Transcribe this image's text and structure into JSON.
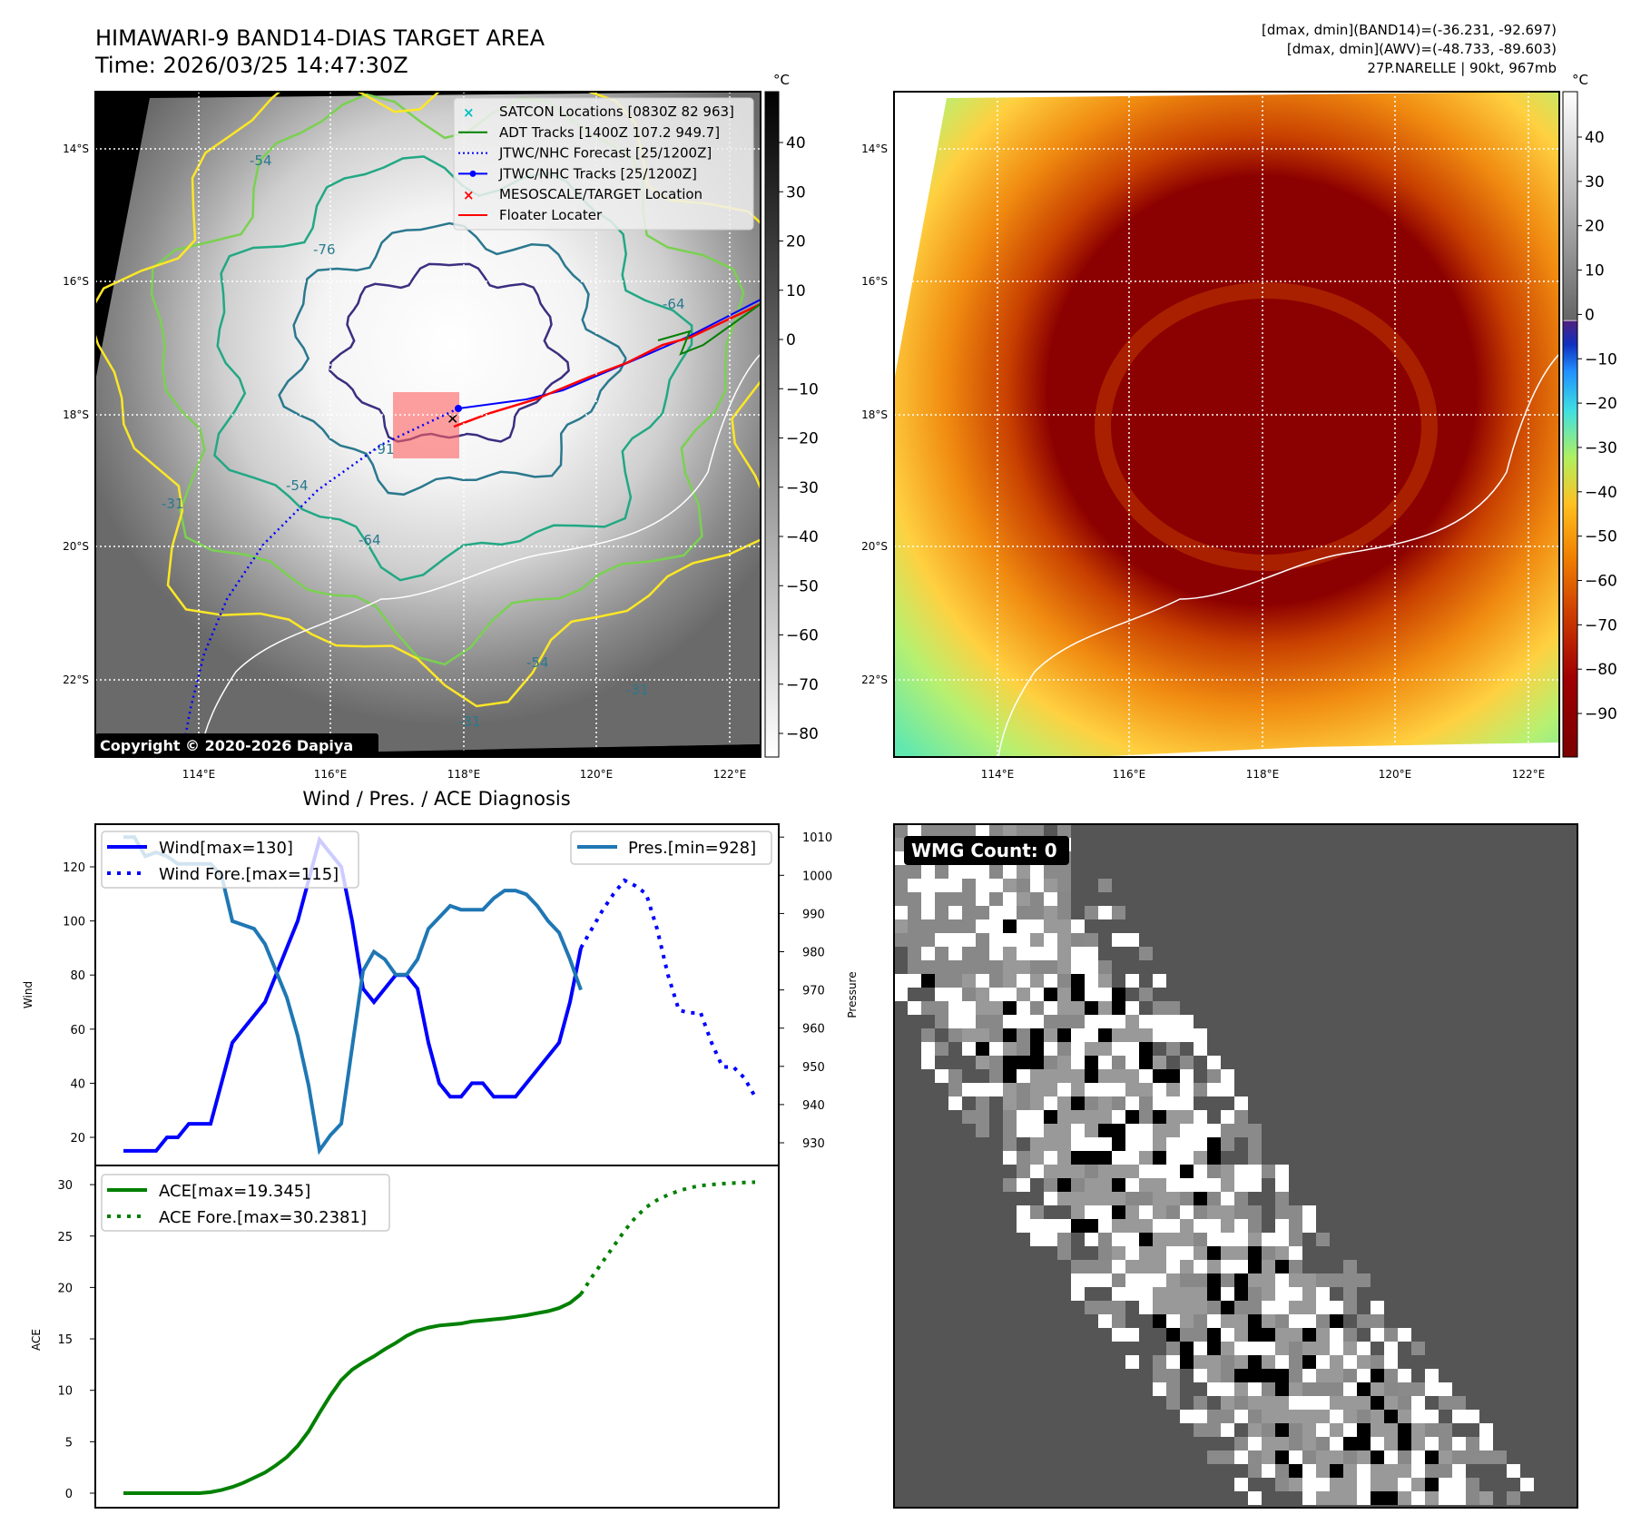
{
  "header": {
    "title": "HIMAWARI-9 BAND14-DIAS TARGET AREA",
    "time": "Time: 2026/03/25 14:47:30Z",
    "info_line1": "[dmax, dmin](BAND14)=(-36.231, -92.697)",
    "info_line2": "[dmax, dmin](AWV)=(-48.733, -89.603)",
    "info_line3": "27P.NARELLE | 90kt, 967mb"
  },
  "left_map": {
    "copyright": "Copyright © 2020-2026 Dapiya",
    "lon_labels": [
      "114°E",
      "116°E",
      "118°E",
      "120°E",
      "122°E"
    ],
    "lat_labels": [
      "14°S",
      "16°S",
      "18°S",
      "20°S",
      "22°S"
    ],
    "contour_labels": [
      "-54",
      "-76",
      "-64",
      "-91",
      "-54",
      "-64",
      "-54",
      "-31",
      "-31",
      "-31"
    ],
    "colorbar_unit": "°C",
    "colorbar_ticks": [
      "40",
      "30",
      "20",
      "10",
      "0",
      "−10",
      "−20",
      "−30",
      "−40",
      "−50",
      "−60",
      "−70",
      "−80"
    ],
    "legend": [
      {
        "label": "SATCON Locations [0830Z 82 963]",
        "color": "#00c0c0",
        "style": "x"
      },
      {
        "label": "ADT Tracks [1400Z 107.2 949.7]",
        "color": "#008000",
        "style": "line"
      },
      {
        "label": "JTWC/NHC Forecast [25/1200Z]",
        "color": "#0000ff",
        "style": "dot"
      },
      {
        "label": "JTWC/NHC Tracks [25/1200Z]",
        "color": "#0000ff",
        "style": "marker"
      },
      {
        "label": "MESOSCALE/TARGET Location",
        "color": "#ff0000",
        "style": "x"
      },
      {
        "label": "Floater Locater",
        "color": "#ff0000",
        "style": "line"
      }
    ]
  },
  "right_map": {
    "lon_labels": [
      "114°E",
      "116°E",
      "118°E",
      "120°E",
      "122°E"
    ],
    "lat_labels": [
      "14°S",
      "16°S",
      "18°S",
      "20°S",
      "22°S"
    ],
    "colorbar_unit": "°C",
    "colorbar_ticks": [
      "40",
      "30",
      "20",
      "10",
      "0",
      "−10",
      "−20",
      "−30",
      "−40",
      "−50",
      "−60",
      "−70",
      "−80",
      "−90"
    ]
  },
  "wmg": {
    "label": "WMG Count: 0"
  },
  "chart_data": [
    {
      "type": "line",
      "title": "Wind / Pres. / ACE Diagnosis",
      "ylabel": "Wind",
      "ylabel_right": "Pressure",
      "ylim": [
        10,
        135
      ],
      "ylim_right": [
        922,
        1012
      ],
      "yticks": [
        "20",
        "40",
        "60",
        "80",
        "100",
        "120"
      ],
      "yticks_right": [
        "930",
        "940",
        "950",
        "960",
        "970",
        "980",
        "990",
        "1000",
        "1010"
      ],
      "series": [
        {
          "name": "Wind[max=130]",
          "color": "#0000ff",
          "style": "solid",
          "start": 0,
          "values": [
            15,
            15,
            15,
            15,
            20,
            20,
            25,
            25,
            25,
            40,
            55,
            60,
            65,
            70,
            80,
            90,
            100,
            115,
            130,
            125,
            120,
            100,
            75,
            70,
            75,
            80,
            80,
            75,
            55,
            40,
            35,
            35,
            40,
            40,
            35,
            35,
            35,
            40,
            45,
            50,
            55,
            70,
            90
          ]
        },
        {
          "name": "Wind Fore.[max=115]",
          "color": "#0000ff",
          "style": "dotted",
          "start": 42,
          "values": [
            90,
            97,
            104,
            110,
            115,
            113,
            110,
            97,
            80,
            67,
            66,
            66,
            55,
            46,
            46,
            42,
            35
          ]
        },
        {
          "name": "Pres.[min=928]",
          "color": "#1f77b4",
          "style": "solid",
          "axis": "right",
          "start": 0,
          "values": [
            1010,
            1010,
            1005,
            1006,
            1005,
            1003,
            1003,
            1003,
            1003,
            1000,
            988,
            987,
            986,
            982,
            975,
            968,
            958,
            945,
            928,
            932,
            935,
            955,
            975,
            980,
            978,
            974,
            974,
            978,
            986,
            989,
            992,
            991,
            991,
            991,
            994,
            996,
            996,
            995,
            992,
            988,
            985,
            978,
            970
          ]
        }
      ]
    },
    {
      "type": "line",
      "ylabel": "ACE",
      "ylim": [
        -2,
        32
      ],
      "yticks": [
        "0",
        "5",
        "10",
        "15",
        "20",
        "25",
        "30"
      ],
      "series": [
        {
          "name": "ACE[max=19.345]",
          "color": "#008000",
          "style": "solid",
          "start": 0,
          "values": [
            0,
            0,
            0,
            0,
            0,
            0,
            0,
            0,
            0.1,
            0.3,
            0.6,
            1,
            1.5,
            2,
            2.7,
            3.5,
            4.6,
            6,
            7.8,
            9.5,
            11,
            12,
            12.7,
            13.3,
            14,
            14.6,
            15.3,
            15.8,
            16.1,
            16.3,
            16.4,
            16.5,
            16.7,
            16.8,
            16.9,
            17.0,
            17.15,
            17.3,
            17.5,
            17.7,
            18.0,
            18.5,
            19.35
          ]
        },
        {
          "name": "ACE Fore.[max=30.2381]",
          "color": "#008000",
          "style": "dotted",
          "start": 42,
          "values": [
            19.35,
            21,
            22.5,
            24,
            25.5,
            26.8,
            27.8,
            28.5,
            29,
            29.4,
            29.7,
            29.9,
            30.0,
            30.1,
            30.15,
            30.2,
            30.24
          ]
        }
      ]
    }
  ]
}
